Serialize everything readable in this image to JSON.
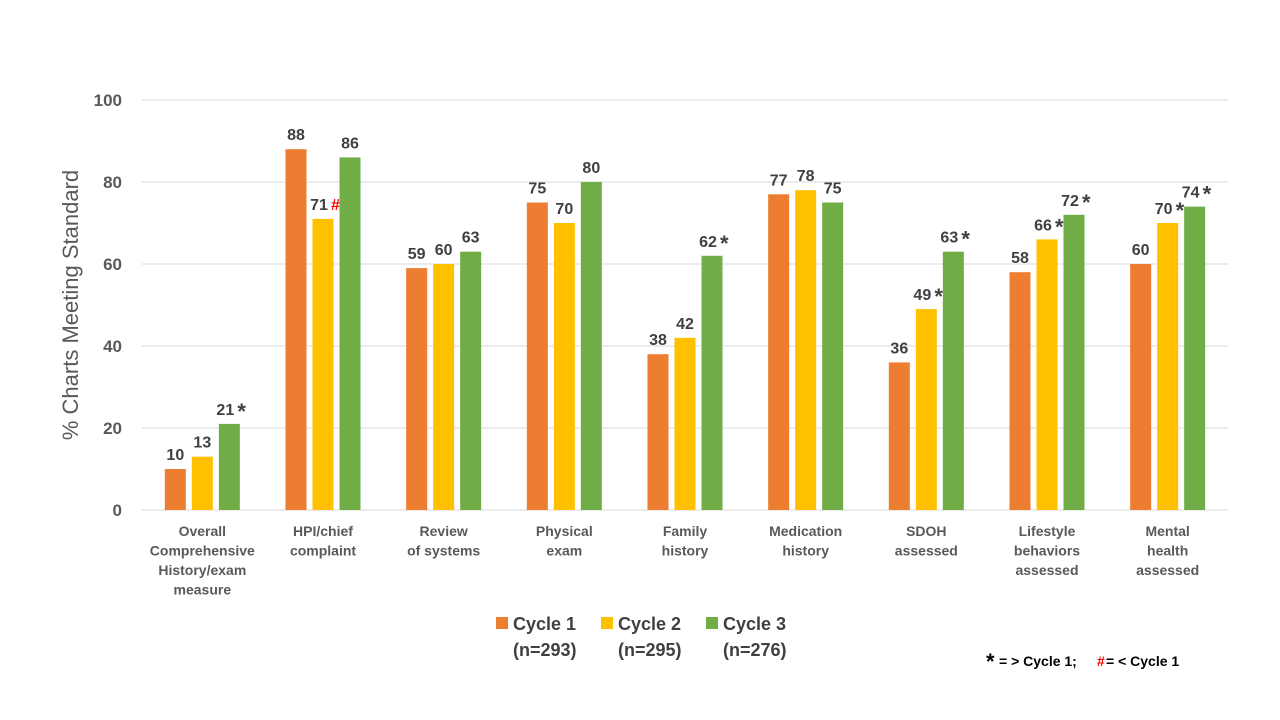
{
  "chart_data": {
    "type": "bar",
    "ylabel": "% Charts Meeting Standard",
    "ylim": [
      0,
      100
    ],
    "yticks": [
      0,
      20,
      40,
      60,
      80,
      100
    ],
    "grid": true,
    "categories": [
      [
        "Overall",
        "Comprehensive",
        "History/exam",
        "measure"
      ],
      [
        "HPI/chief",
        "complaint"
      ],
      [
        "Review",
        "of systems"
      ],
      [
        "Physical",
        "exam"
      ],
      [
        "Family",
        "history"
      ],
      [
        "Medication",
        "history"
      ],
      [
        "SDOH",
        "assessed"
      ],
      [
        "Lifestyle",
        "behaviors",
        "assessed"
      ],
      [
        "Mental",
        "health",
        "assessed"
      ]
    ],
    "series": [
      {
        "name": "Cycle 1",
        "n": "(n=293)",
        "color": "#ED7D31",
        "values": [
          10,
          88,
          59,
          75,
          38,
          77,
          36,
          58,
          60
        ],
        "marks": [
          "",
          "",
          "",
          "",
          "",
          "",
          "",
          "",
          ""
        ]
      },
      {
        "name": "Cycle 2",
        "n": "(n=295)",
        "color": "#FFC000",
        "values": [
          13,
          71,
          60,
          70,
          42,
          78,
          49,
          66,
          70
        ],
        "marks": [
          "",
          "#",
          "",
          "",
          "",
          "",
          "*",
          "*",
          "*"
        ]
      },
      {
        "name": "Cycle 3",
        "n": "(n=276)",
        "color": "#70AD47",
        "values": [
          21,
          86,
          63,
          80,
          62,
          75,
          63,
          72,
          74
        ],
        "marks": [
          "*",
          "",
          "",
          "",
          "*",
          "",
          "*",
          "*",
          "*"
        ]
      }
    ],
    "legend_position": "bottom",
    "footnote": {
      "star": "*",
      "star_text": " = > Cycle 1; ",
      "hash": "#",
      "hash_text": " = < Cycle 1"
    },
    "colors": {
      "hash_mark": "#FF0000",
      "grid": "#D9D9D9",
      "text": "#404040"
    }
  }
}
